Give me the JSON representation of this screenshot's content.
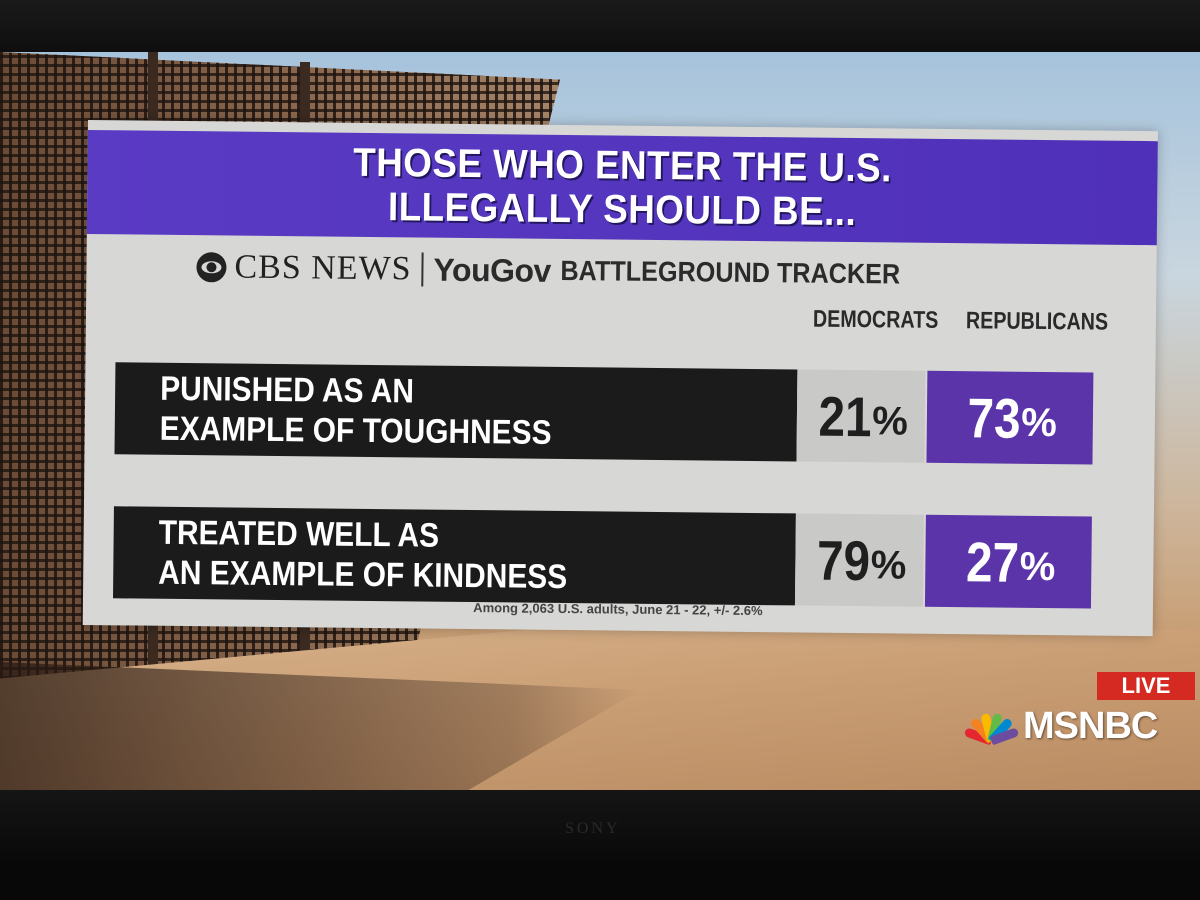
{
  "graphic": {
    "title_line1": "THOSE WHO ENTER THE U.S.",
    "title_line2": "ILLEGALLY SHOULD BE...",
    "source_cbs": "CBS NEWS",
    "source_yougov": "YouGov",
    "source_tracker": "BATTLEGROUND TRACKER",
    "columns": [
      "DEMOCRATS",
      "REPUBLICANS"
    ],
    "rows": [
      {
        "line1": "PUNISHED AS AN",
        "line2": "EXAMPLE OF TOUGHNESS",
        "democrats": "21",
        "republicans": "73"
      },
      {
        "line1": "TREATED WELL AS",
        "line2": "AN EXAMPLE OF KINDNESS",
        "democrats": "79",
        "republicans": "27"
      }
    ],
    "percent_sign": "%",
    "footnote": "Among 2,063 U.S. adults, June 21 - 22, +/- 2.6%"
  },
  "network": {
    "live": "LIVE",
    "name": "MSNBC"
  },
  "tv_brand": "SONY",
  "colors": {
    "title_bar": "#5a3bc4",
    "republican": "#5a34a8",
    "democrat": "#c9c9c7",
    "label_bg": "#1b1b1b",
    "live": "#d52a22"
  }
}
